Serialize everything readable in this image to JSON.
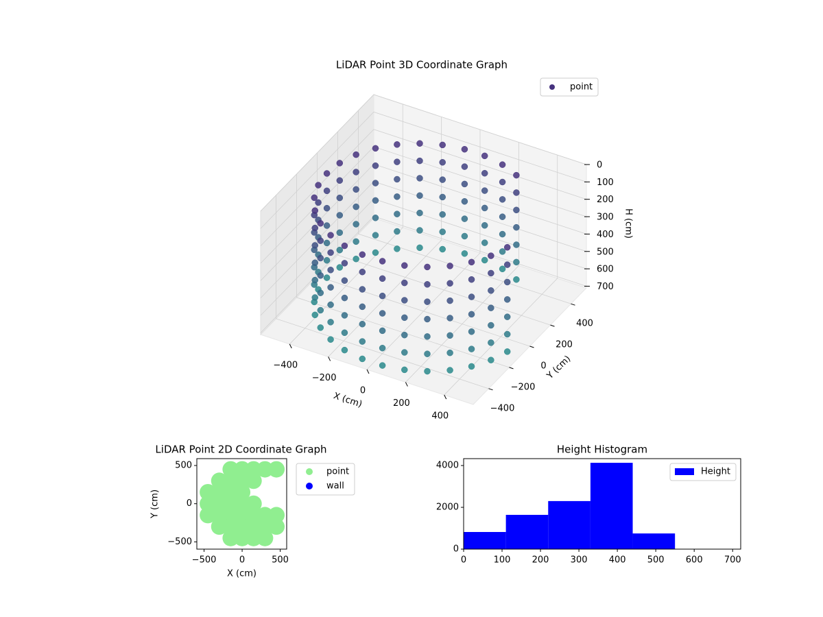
{
  "chart_data": [
    {
      "type": "scatter3d",
      "title": "LiDAR Point 3D Coordinate Graph",
      "xlabel": "X (cm)",
      "ylabel": "Y (cm)",
      "zlabel": "H (cm)",
      "xlim": [
        -550,
        550
      ],
      "ylim": [
        -550,
        550
      ],
      "zlim": [
        710,
        0
      ],
      "xticks": [
        {
          "value": -400,
          "label": "−400"
        },
        {
          "value": -200,
          "label": "−200"
        },
        0,
        200,
        400
      ],
      "yticks": [
        {
          "value": -400,
          "label": "−400"
        },
        {
          "value": -200,
          "label": "−200"
        },
        0,
        200,
        400
      ],
      "zticks": [
        0,
        100,
        200,
        300,
        400,
        500,
        600,
        700
      ],
      "grid": true,
      "legend": "upper right",
      "cmap": [
        "#46327e",
        "#2a8a8c"
      ],
      "series": [
        {
          "name": "point",
          "color": "#46327e",
          "x": [
            250,
            155,
            52,
            -52,
            -155,
            -250,
            -335,
            -405,
            -457,
            -489,
            -500,
            -489,
            -457,
            -405,
            -335,
            -250,
            -155,
            -52,
            52,
            155,
            250,
            335,
            405,
            457,
            489
          ],
          "y": [
            433,
            476,
            497,
            497,
            476,
            433,
            372,
            294,
            203,
            104,
            0,
            -104,
            -203,
            -294,
            -372,
            -433,
            -476,
            -497,
            -497,
            -476,
            -433,
            -372,
            -294,
            -203,
            -104
          ],
          "z_levels": [
            100,
            200,
            300,
            400,
            500,
            600,
            700
          ]
        }
      ]
    },
    {
      "type": "scatter",
      "title": "LiDAR Point 2D Coordinate Graph",
      "xlabel": "X (cm)",
      "ylabel": "Y (cm)",
      "xlim": [
        -595,
        585
      ],
      "ylim": [
        -595,
        590
      ],
      "xticks": [
        {
          "value": -500,
          "label": "−500"
        },
        0,
        500
      ],
      "yticks": [
        {
          "value": -500,
          "label": "−500"
        },
        0,
        500
      ],
      "legend": "outside right",
      "series": [
        {
          "name": "point",
          "color": "#90ee90",
          "x": [
            -150,
            0,
            150,
            300,
            450,
            -300,
            -150,
            0,
            150,
            -450,
            -300,
            -150,
            0,
            -450,
            -300,
            -150,
            0,
            150,
            -450,
            -300,
            -150,
            0,
            150,
            300,
            450,
            -300,
            -150,
            0,
            150,
            300,
            450,
            -150,
            0,
            150,
            300
          ],
          "y": [
            450,
            450,
            450,
            450,
            450,
            300,
            300,
            300,
            300,
            150,
            150,
            150,
            150,
            0,
            0,
            0,
            0,
            0,
            -150,
            -150,
            -150,
            -150,
            -150,
            -150,
            -150,
            -300,
            -300,
            -300,
            -300,
            -300,
            -300,
            -450,
            -450,
            -450,
            -450
          ]
        },
        {
          "name": "wall",
          "color": "#0000ff",
          "x": [],
          "y": []
        }
      ]
    },
    {
      "type": "histogram",
      "title": "Height Histogram",
      "bins": [
        0,
        110,
        220,
        330,
        440,
        550,
        660
      ],
      "xlim": [
        0,
        721
      ],
      "ylim": [
        0,
        4330
      ],
      "xticks": [
        0,
        100,
        200,
        300,
        400,
        500,
        600,
        700
      ],
      "yticks": [
        0,
        2000,
        4000
      ],
      "legend": "upper right",
      "series": [
        {
          "name": "Height",
          "color": "#0000ff",
          "values": [
            820,
            1640,
            2300,
            4130,
            750,
            0
          ]
        }
      ]
    }
  ]
}
